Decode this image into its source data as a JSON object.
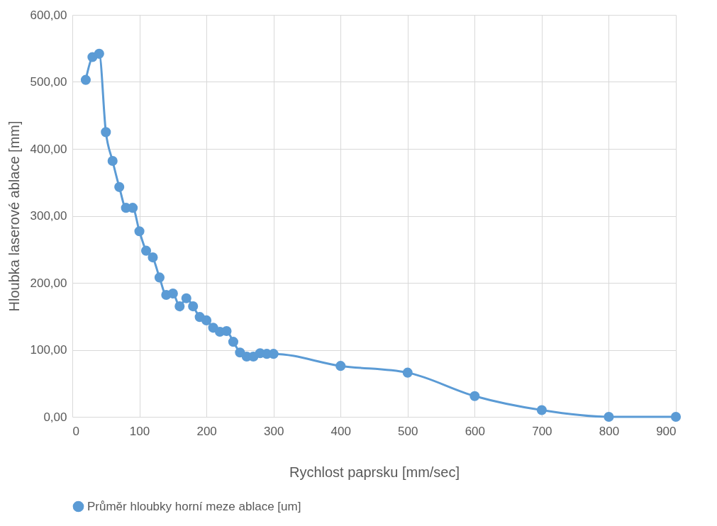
{
  "chart_data": {
    "type": "line",
    "xlabel": "Rychlost paprsku [mm/sec]",
    "ylabel": "Hloubka laserové ablace [mm]",
    "x": [
      20,
      30,
      40,
      50,
      60,
      70,
      80,
      90,
      100,
      110,
      120,
      130,
      140,
      150,
      160,
      170,
      180,
      190,
      200,
      210,
      220,
      230,
      240,
      250,
      260,
      270,
      280,
      290,
      300,
      400,
      500,
      600,
      700,
      800,
      900
    ],
    "series": [
      {
        "name": "Průměr hloubky horní meze ablace [um]",
        "color": "#5b9bd5",
        "values": [
          503,
          537,
          542,
          425,
          382,
          343,
          312,
          312,
          277,
          248,
          238,
          208,
          182,
          184,
          165,
          177,
          165,
          149,
          144,
          133,
          127,
          128,
          112,
          96,
          90,
          90,
          95,
          94,
          94,
          76,
          66,
          31,
          10,
          0,
          0
        ]
      }
    ],
    "xlim": [
      0,
      900
    ],
    "xticks": [
      0,
      100,
      200,
      300,
      400,
      500,
      600,
      700,
      800,
      900
    ],
    "ylim": [
      0,
      600
    ],
    "yticks": [
      {
        "value": 0,
        "label": "0,00"
      },
      {
        "value": 100,
        "label": "100,00"
      },
      {
        "value": 200,
        "label": "200,00"
      },
      {
        "value": 300,
        "label": "300,00"
      },
      {
        "value": 400,
        "label": "400,00"
      },
      {
        "value": 500,
        "label": "500,00"
      },
      {
        "value": 600,
        "label": "600,00"
      }
    ],
    "grid": true,
    "legend": "bottom",
    "marker": "circle",
    "line_style": "solid"
  }
}
